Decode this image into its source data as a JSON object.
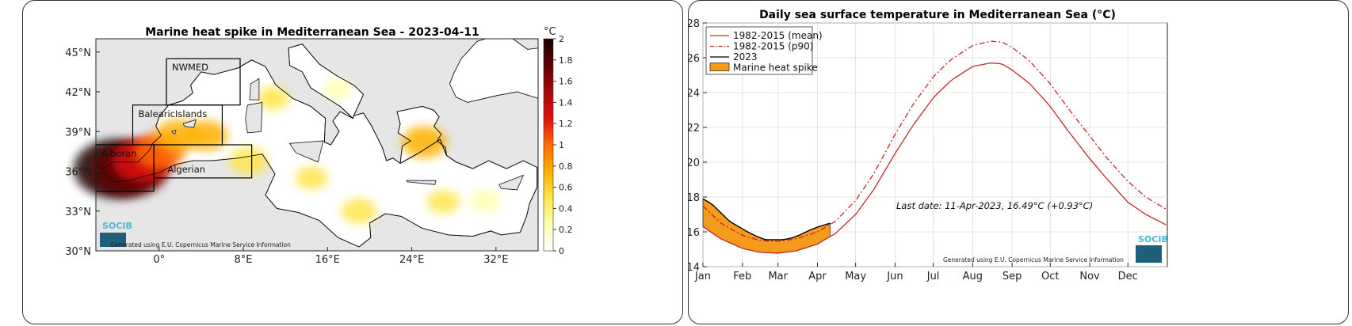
{
  "chart_data": [
    {
      "type": "heatmap",
      "title": "Marine heat spike in Mediterranean Sea - 2023-04-11",
      "colorbar": {
        "unit": "°C",
        "min": 0,
        "max": 2,
        "ticks": [
          "0",
          "0.2",
          "0.4",
          "0.6",
          "0.8",
          "1",
          "1.2",
          "1.4",
          "1.6",
          "1.8",
          "2"
        ],
        "colors": [
          "#ffffff",
          "#ffffb0",
          "#ffe54a",
          "#ffb000",
          "#ff6a00",
          "#e01010",
          "#a80808",
          "#600000",
          "#1a0000"
        ]
      },
      "x_ticks": [
        "0°",
        "8°E",
        "16°E",
        "24°E",
        "32°E"
      ],
      "y_ticks": [
        "30°N",
        "33°N",
        "36°N",
        "39°N",
        "42°N",
        "45°N"
      ],
      "xlim": [
        -6,
        36
      ],
      "ylim": [
        30,
        46
      ],
      "regions": [
        {
          "name": "NWMED",
          "lon": [
            0.7,
            7.7
          ],
          "lat": [
            41.0,
            44.5
          ]
        },
        {
          "name": "BalearicIslands",
          "lon": [
            -2.5,
            6.0
          ],
          "lat": [
            38.0,
            41.0
          ]
        },
        {
          "name": "Alboran",
          "lon": [
            -6.0,
            -0.5
          ],
          "lat": [
            34.5,
            38.0
          ]
        },
        {
          "name": "Algerian",
          "lon": [
            -0.5,
            8.8
          ],
          "lat": [
            35.5,
            38.0
          ]
        }
      ],
      "hotspots": [
        {
          "lon": -4.2,
          "lat": 36.2,
          "value": 2.0
        },
        {
          "lon": -2.8,
          "lat": 36.1,
          "value": 1.8
        },
        {
          "lon": -1.6,
          "lat": 36.8,
          "value": 1.3
        },
        {
          "lon": 0.0,
          "lat": 37.5,
          "value": 1.0
        },
        {
          "lon": 1.8,
          "lat": 38.7,
          "value": 0.8
        },
        {
          "lon": 4.5,
          "lat": 38.7,
          "value": 0.7
        },
        {
          "lon": 8.5,
          "lat": 36.8,
          "value": 0.6
        },
        {
          "lon": 25.2,
          "lat": 38.2,
          "value": 0.8
        },
        {
          "lon": 19.0,
          "lat": 33.0,
          "value": 0.5
        },
        {
          "lon": 27.0,
          "lat": 33.7,
          "value": 0.4
        },
        {
          "lon": 14.5,
          "lat": 35.5,
          "value": 0.4
        },
        {
          "lon": 31.0,
          "lat": 33.8,
          "value": 0.35
        },
        {
          "lon": 10.8,
          "lat": 41.5,
          "value": 0.4
        },
        {
          "lon": 17.0,
          "lat": 42.2,
          "value": 0.3
        }
      ],
      "logo": "SOCIB",
      "credit": "Generated using E.U. Copernicus Marine Service Information"
    },
    {
      "type": "line",
      "title": "Daily sea surface temperature in Mediterranean Sea (°C)",
      "ylim": [
        14,
        28
      ],
      "y_ticks": [
        14,
        16,
        18,
        20,
        22,
        24,
        26,
        28
      ],
      "categories": [
        "Jan",
        "Feb",
        "Mar",
        "Apr",
        "May",
        "Jun",
        "Jul",
        "Aug",
        "Sep",
        "Oct",
        "Nov",
        "Dec"
      ],
      "xlim": [
        1,
        366
      ],
      "series": [
        {
          "name": "1982-2015 (mean)",
          "color": "#c0282a",
          "style": "solid",
          "x": [
            1,
            15,
            32,
            46,
            60,
            74,
            91,
            105,
            121,
            135,
            152,
            166,
            182,
            196,
            213,
            227,
            236,
            244,
            258,
            274,
            288,
            305,
            319,
            335,
            349,
            365
          ],
          "y": [
            16.3,
            15.6,
            15.05,
            14.82,
            14.78,
            14.9,
            15.3,
            15.9,
            17.0,
            18.4,
            20.5,
            22.1,
            23.7,
            24.7,
            25.5,
            25.7,
            25.65,
            25.3,
            24.5,
            23.2,
            21.8,
            20.2,
            19.0,
            17.7,
            17.0,
            16.4
          ]
        },
        {
          "name": "1982-2015 (p90)",
          "color": "#c0282a",
          "style": "dashdot",
          "x": [
            1,
            15,
            32,
            46,
            60,
            74,
            91,
            105,
            121,
            135,
            152,
            166,
            182,
            196,
            213,
            227,
            236,
            244,
            258,
            274,
            288,
            305,
            319,
            335,
            349,
            365
          ],
          "y": [
            17.5,
            16.5,
            15.8,
            15.5,
            15.45,
            15.6,
            16.0,
            16.6,
            17.8,
            19.3,
            21.6,
            23.3,
            24.9,
            25.9,
            26.7,
            26.95,
            26.9,
            26.6,
            25.8,
            24.5,
            23.1,
            21.5,
            20.2,
            18.9,
            18.0,
            17.3
          ]
        },
        {
          "name": "2023",
          "color": "#000000",
          "style": "solid",
          "x": [
            1,
            8,
            15,
            22,
            29,
            36,
            43,
            50,
            57,
            64,
            71,
            78,
            85,
            92,
            101
          ],
          "y": [
            17.9,
            17.6,
            17.1,
            16.6,
            16.3,
            16.0,
            15.75,
            15.55,
            15.55,
            15.55,
            15.65,
            15.85,
            16.1,
            16.3,
            16.49
          ]
        }
      ],
      "legend": [
        {
          "label": "1982-2015 (mean)",
          "kind": "line"
        },
        {
          "label": "1982-2015 (p90)",
          "kind": "dashdot"
        },
        {
          "label": "2023",
          "kind": "line-black"
        },
        {
          "label": "Marine heat spike",
          "kind": "fill",
          "color": "#f49a1c"
        }
      ],
      "legend_position": "top-left",
      "grid": true,
      "annotation": "Last date: 11-Apr-2023, 16.49°C (+0.93°C)",
      "logo": "SOCIB",
      "credit": "Generated using E.U. Copernicus Marine Service Information"
    }
  ]
}
